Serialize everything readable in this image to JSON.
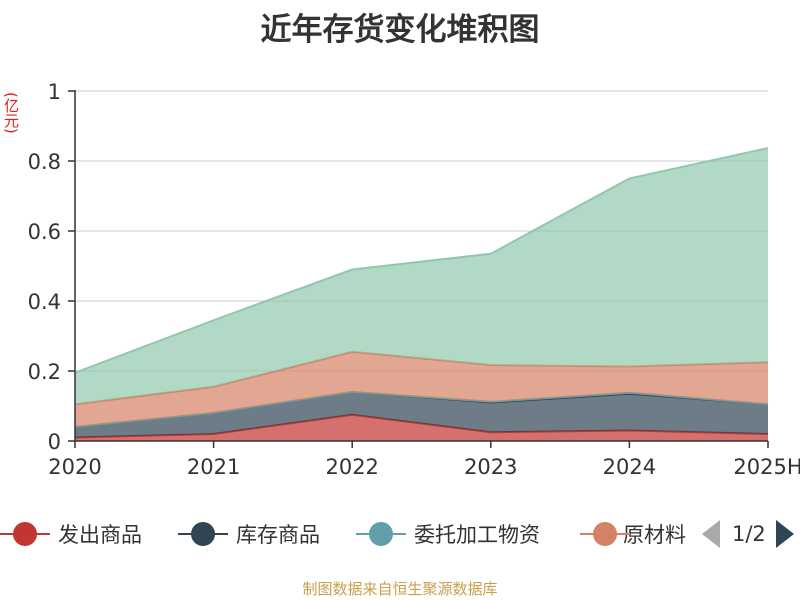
{
  "chart_data": {
    "type": "area",
    "stacked": true,
    "title": "近年存货变化堆积图",
    "unit_label": "(亿元)",
    "categories": [
      "2020",
      "2021",
      "2022",
      "2023",
      "2024",
      "2025H"
    ],
    "ylim": [
      0,
      1
    ],
    "yticks": [
      "0",
      "0.2",
      "0.4",
      "0.6",
      "0.8",
      "1"
    ],
    "grid": true,
    "legend_position": "bottom",
    "series": [
      {
        "name": "发出商品",
        "color": "#c23531",
        "values": [
          0.01,
          0.02,
          0.075,
          0.025,
          0.03,
          0.02
        ]
      },
      {
        "name": "库存商品",
        "color": "#2f4554",
        "values": [
          0.03,
          0.06,
          0.065,
          0.085,
          0.105,
          0.085
        ]
      },
      {
        "name": "委托加工物资",
        "color": "#61a0a8",
        "values": [
          0.0,
          0.0,
          0.0,
          0.002,
          0.003,
          0.0
        ]
      },
      {
        "name": "原材料",
        "color": "#d48265",
        "values": [
          0.065,
          0.075,
          0.115,
          0.105,
          0.075,
          0.12
        ]
      },
      {
        "name": "",
        "color": "#91c7ae",
        "values": [
          0.09,
          0.19,
          0.235,
          0.318,
          0.537,
          0.612
        ]
      }
    ]
  },
  "legend": {
    "items": [
      "发出商品",
      "库存商品",
      "委托加工物资",
      "原材料"
    ],
    "page_indicator": "1/2"
  },
  "source": "制图数据来自恒生聚源数据库"
}
